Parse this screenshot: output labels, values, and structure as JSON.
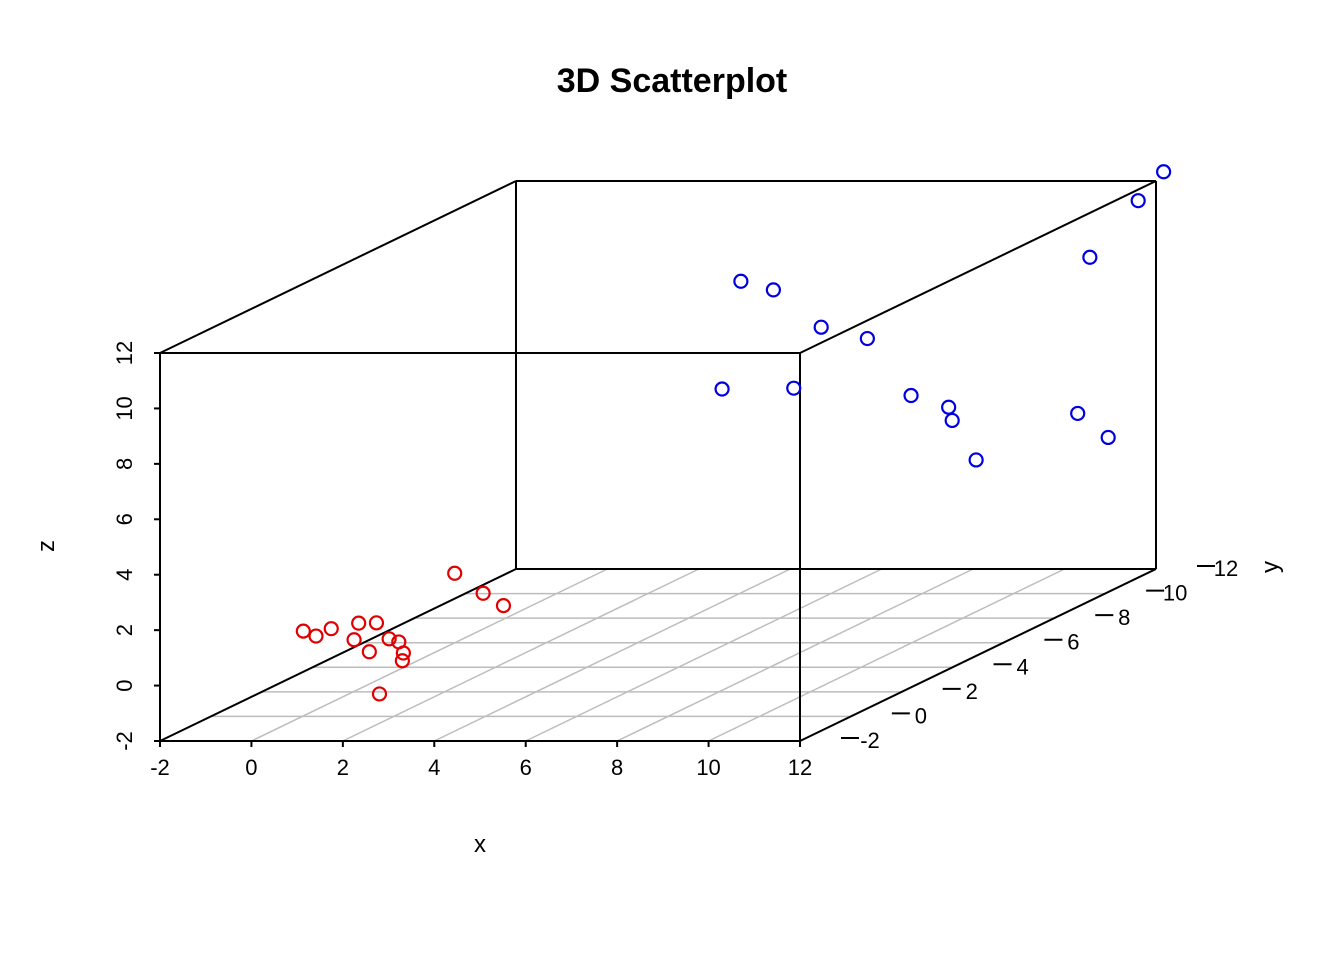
{
  "chart_data": {
    "type": "scatter",
    "title": "3D Scatterplot",
    "xlabel": "x",
    "ylabel": "y",
    "zlabel": "z",
    "xlim": [
      -2,
      12
    ],
    "ylim": [
      -2,
      12
    ],
    "zlim": [
      -2,
      12
    ],
    "x_ticks": [
      "-2",
      "0",
      "2",
      "4",
      "6",
      "8",
      "10",
      "12"
    ],
    "y_ticks": [
      "-2",
      "0",
      "2",
      "4",
      "6",
      "8",
      "10",
      "12"
    ],
    "z_ticks": [
      "-2",
      "0",
      "2",
      "4",
      "6",
      "8",
      "10",
      "12"
    ],
    "grid": true,
    "marker": "open-circle",
    "series": [
      {
        "color": "#e00000",
        "points": [
          {
            "x": -0.2,
            "y": 0.4,
            "z": 0.9
          },
          {
            "x": 0.3,
            "y": 0.6,
            "z": 0.9
          },
          {
            "x": 0.3,
            "y": 0.0,
            "z": 0.9
          },
          {
            "x": 0.9,
            "y": 0.6,
            "z": 1.1
          },
          {
            "x": 1.4,
            "y": 0.4,
            "z": 1.2
          },
          {
            "x": 1.3,
            "y": -0.3,
            "z": 0.9
          },
          {
            "x": 1.9,
            "y": 0.0,
            "z": 0.8
          },
          {
            "x": 2.0,
            "y": 0.2,
            "z": 0.6
          },
          {
            "x": 2.1,
            "y": 0.2,
            "z": 0.2
          },
          {
            "x": 1.8,
            "y": 0.7,
            "z": -0.3
          },
          {
            "x": 1.3,
            "y": 0.3,
            "z": 0.2
          },
          {
            "x": 1.8,
            "y": -0.2,
            "z": -1.1
          },
          {
            "x": 2.5,
            "y": 1.5,
            "z": 2.5
          },
          {
            "x": 3.4,
            "y": 1.0,
            "z": 2.0
          },
          {
            "x": 3.9,
            "y": 0.9,
            "z": 1.6
          }
        ]
      },
      {
        "color": "#0000e0",
        "points": [
          {
            "x": 5.2,
            "y": 7.9,
            "z": 10.2
          },
          {
            "x": 5.8,
            "y": 8.1,
            "z": 9.8
          },
          {
            "x": 5.9,
            "y": 9.8,
            "z": 7.7
          },
          {
            "x": 4.9,
            "y": 7.7,
            "z": 6.4
          },
          {
            "x": 5.3,
            "y": 9.8,
            "z": 5.5
          },
          {
            "x": 7.8,
            "y": 8.2,
            "z": 8.0
          },
          {
            "x": 8.7,
            "y": 8.3,
            "z": 5.9
          },
          {
            "x": 9.3,
            "y": 8.7,
            "z": 5.3
          },
          {
            "x": 9.6,
            "y": 8.3,
            "z": 5.0
          },
          {
            "x": 11.4,
            "y": 10.0,
            "z": 4.5
          },
          {
            "x": 11.9,
            "y": 10.3,
            "z": 3.5
          },
          {
            "x": 8.9,
            "y": 10.5,
            "z": 2.6
          },
          {
            "x": 12.0,
            "y": 9.4,
            "z": 10.4
          },
          {
            "x": 12.0,
            "y": 11.3,
            "z": 11.6
          },
          {
            "x": 12.0,
            "y": 12.3,
            "z": 12.2
          }
        ]
      }
    ]
  }
}
